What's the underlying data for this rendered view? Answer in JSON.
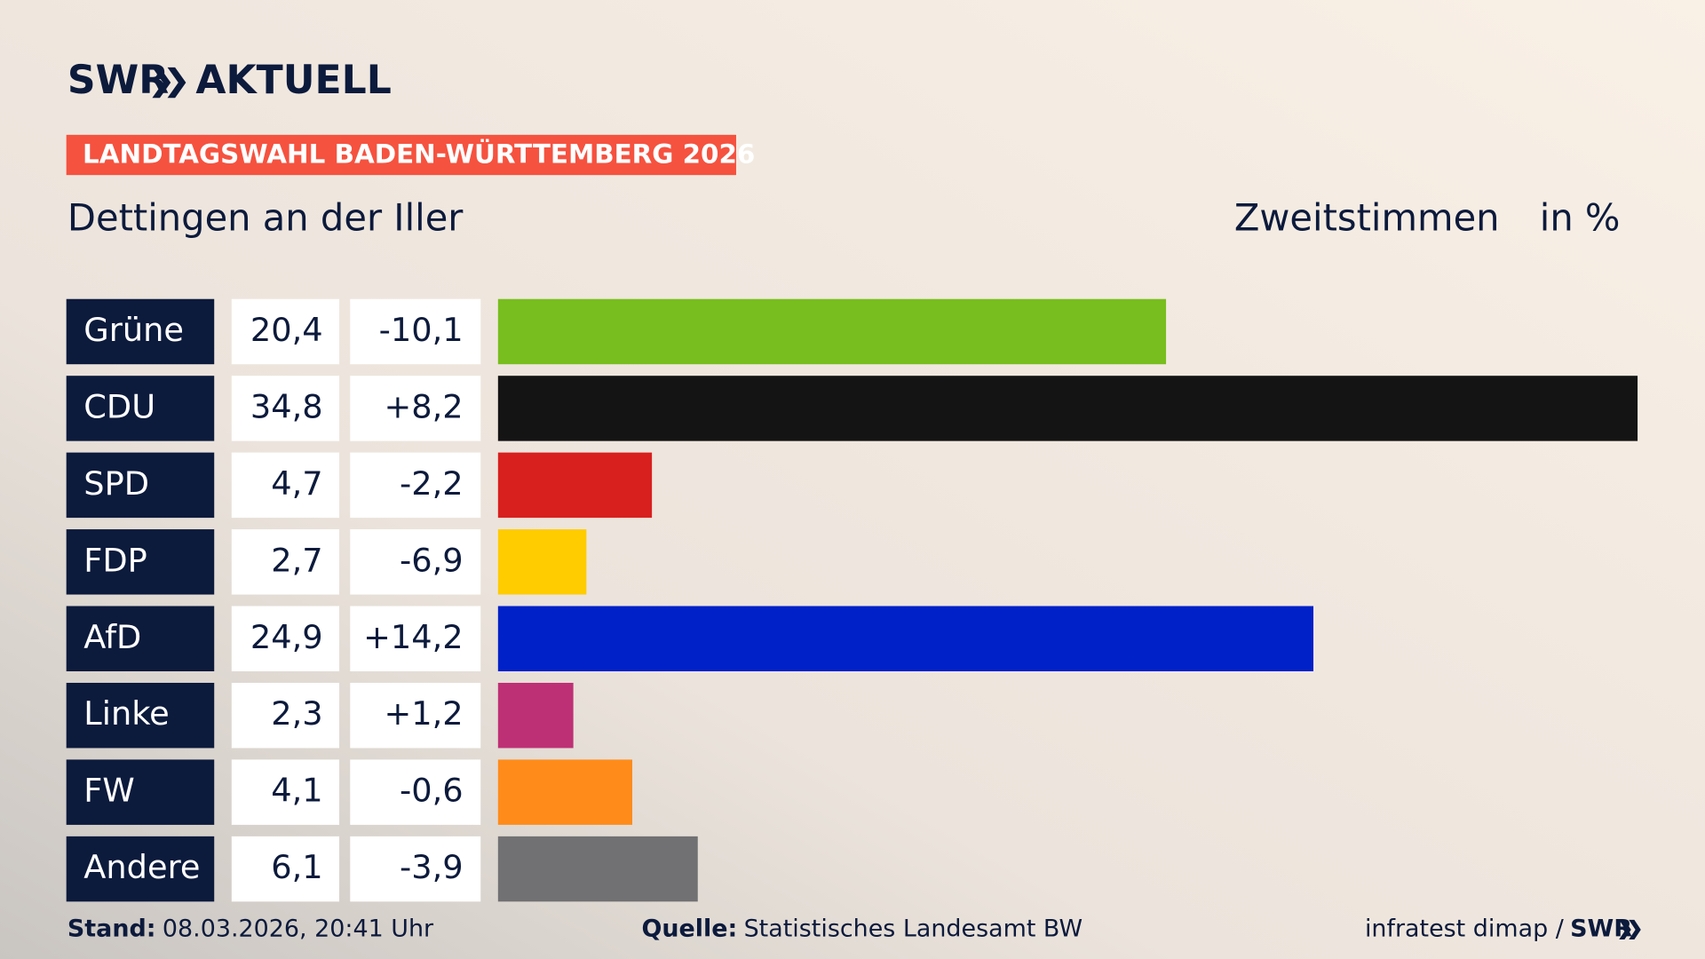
{
  "chart_data": {
    "type": "bar",
    "banner": "LANDTAGSWAHL BADEN-WÜRTTEMBERG 2026",
    "brand": [
      "SWR",
      "AKTUELL"
    ],
    "title": "Dettingen an der Iller",
    "subtitle": "Zweitstimmen",
    "unit": "in %",
    "categories": [
      "Grüne",
      "CDU",
      "SPD",
      "FDP",
      "AfD",
      "Linke",
      "FW",
      "Andere"
    ],
    "values": [
      20.4,
      34.8,
      4.7,
      2.7,
      24.9,
      2.3,
      4.1,
      6.1
    ],
    "value_labels": [
      "20,4",
      "34,8",
      "4,7",
      "2,7",
      "24,9",
      "2,3",
      "4,1",
      "6,1"
    ],
    "changes": [
      -10.1,
      8.2,
      -2.2,
      -6.9,
      14.2,
      1.2,
      -0.6,
      -3.9
    ],
    "change_labels": [
      "-10,1",
      "+8,2",
      "-2,2",
      "-6,9",
      "+14,2",
      "+1,2",
      "-0,6",
      "-3,9"
    ],
    "colors": [
      "#78be1e",
      "#141414",
      "#d8201e",
      "#ffcc00",
      "#0021c8",
      "#be3075",
      "#ff8c1a",
      "#717173"
    ],
    "footer": {
      "stand_label": "Stand:",
      "stand": "08.03.2026, 20:41 Uhr",
      "source_label": "Quelle:",
      "source": "Statistisches Landesamt BW",
      "credit": "infratest dimap /",
      "credit_brand": "SWR"
    }
  }
}
